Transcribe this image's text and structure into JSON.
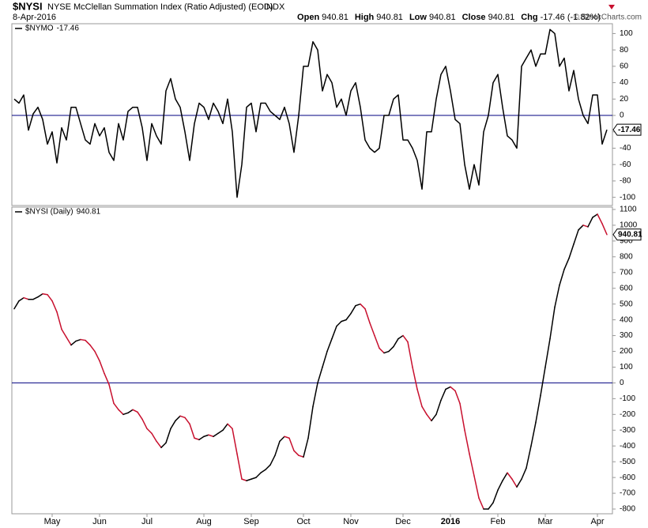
{
  "header": {
    "symbol": "$NYSI",
    "title": "NYSE McClellan Summation Index (Ratio Adjusted) (EOD)",
    "exchange": "INDX",
    "date": "8-Apr-2016",
    "credit": "© StockCharts.com",
    "quote": [
      {
        "label": "Open",
        "value": 940.81
      },
      {
        "label": "High",
        "value": 940.81
      },
      {
        "label": "Low",
        "value": 940.81
      },
      {
        "label": "Close",
        "value": 940.81
      },
      {
        "label": "Chg",
        "value": -17.46,
        "percent_label": "(-1.82%)"
      }
    ]
  },
  "chart_data": [
    {
      "type": "line",
      "name": "$NYMO",
      "color": "#000000",
      "zero_line": true,
      "zero_color": "#000080",
      "ylim": [
        -110,
        112
      ],
      "yticks": [
        -100,
        -80,
        -60,
        -40,
        -20,
        0,
        20,
        40,
        60,
        80,
        100
      ],
      "values": [
        20,
        15,
        25,
        -18,
        2,
        10,
        -5,
        -35,
        -20,
        -58,
        -15,
        -30,
        10,
        10,
        -10,
        -30,
        -35,
        -10,
        -25,
        -15,
        -45,
        -55,
        -10,
        -30,
        5,
        10,
        10,
        -15,
        -55,
        -10,
        -25,
        -35,
        30,
        45,
        20,
        10,
        -20,
        -55,
        -10,
        15,
        10,
        -5,
        15,
        5,
        -10,
        20,
        -20,
        -100,
        -60,
        10,
        15,
        -20,
        15,
        15,
        5,
        0,
        -5,
        10,
        -10,
        -45,
        0,
        60,
        60,
        90,
        80,
        30,
        50,
        40,
        10,
        20,
        0,
        30,
        40,
        10,
        -30,
        -40,
        -45,
        -40,
        0,
        0,
        20,
        25,
        -30,
        -30,
        -40,
        -55,
        -90,
        -20,
        -20,
        20,
        50,
        60,
        30,
        -5,
        -10,
        -60,
        -90,
        -60,
        -85,
        -20,
        0,
        40,
        50,
        10,
        -25,
        -30,
        -40,
        60,
        70,
        80,
        60,
        75,
        75,
        105,
        100,
        60,
        70,
        30,
        55,
        20,
        0,
        -10,
        25,
        25,
        -35,
        -17.46
      ]
    },
    {
      "type": "line",
      "name": "$NYSI (Daily)",
      "up_color": "#000000",
      "down_color": "#c8102e",
      "zero_line": true,
      "zero_color": "#000080",
      "ylim": [
        -830,
        1115
      ],
      "yticks": [
        -800,
        -700,
        -600,
        -500,
        -400,
        -300,
        -200,
        -100,
        0,
        100,
        200,
        300,
        400,
        500,
        600,
        700,
        800,
        900,
        1000,
        1100
      ],
      "categories": [
        null,
        null,
        null,
        null,
        null,
        null,
        null,
        null,
        "May",
        null,
        null,
        null,
        null,
        null,
        null,
        null,
        null,
        null,
        "Jun",
        null,
        null,
        null,
        null,
        null,
        null,
        null,
        null,
        null,
        "Jul",
        null,
        null,
        null,
        null,
        null,
        null,
        null,
        null,
        null,
        null,
        null,
        "Aug",
        null,
        null,
        null,
        null,
        null,
        null,
        null,
        null,
        null,
        "Sep",
        null,
        null,
        null,
        null,
        null,
        null,
        null,
        null,
        null,
        null,
        "Oct",
        null,
        null,
        null,
        null,
        null,
        null,
        null,
        null,
        null,
        "Nov",
        null,
        null,
        null,
        null,
        null,
        null,
        null,
        null,
        null,
        null,
        "Dec",
        null,
        null,
        null,
        null,
        null,
        null,
        null,
        null,
        null,
        "2016",
        null,
        null,
        null,
        null,
        null,
        null,
        null,
        null,
        null,
        "Feb",
        null,
        null,
        null,
        null,
        null,
        null,
        null,
        null,
        null,
        "Mar",
        null,
        null,
        null,
        null,
        null,
        null,
        null,
        null,
        null,
        null,
        "Apr",
        null,
        null
      ],
      "values": [
        470,
        520,
        540,
        530,
        530,
        545,
        565,
        560,
        520,
        450,
        340,
        290,
        240,
        265,
        275,
        270,
        240,
        200,
        140,
        60,
        -10,
        -130,
        -170,
        -200,
        -190,
        -170,
        -185,
        -230,
        -290,
        -320,
        -370,
        -410,
        -380,
        -290,
        -240,
        -210,
        -220,
        -260,
        -350,
        -360,
        -340,
        -330,
        -340,
        -320,
        -300,
        -260,
        -290,
        -450,
        -610,
        -620,
        -610,
        -600,
        -570,
        -550,
        -520,
        -460,
        -370,
        -340,
        -350,
        -430,
        -460,
        -470,
        -350,
        -150,
        0,
        100,
        200,
        280,
        360,
        390,
        400,
        440,
        490,
        500,
        470,
        380,
        300,
        220,
        190,
        200,
        230,
        280,
        300,
        260,
        100,
        -40,
        -150,
        -200,
        -240,
        -200,
        -110,
        -40,
        -25,
        -50,
        -130,
        -300,
        -450,
        -590,
        -730,
        -800,
        -800,
        -760,
        -680,
        -620,
        -570,
        -610,
        -660,
        -610,
        -540,
        -400,
        -250,
        -80,
        100,
        280,
        480,
        620,
        720,
        790,
        880,
        970,
        1000,
        990,
        1050,
        1070,
        1010,
        940.81
      ]
    }
  ]
}
